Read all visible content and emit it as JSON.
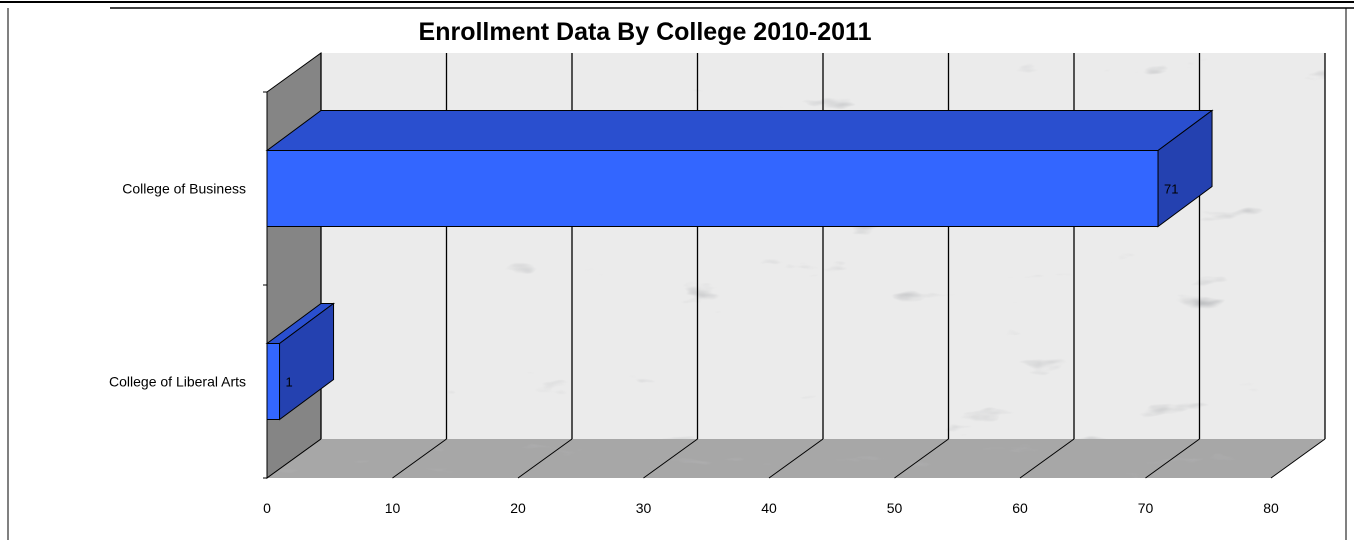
{
  "chart_data": {
    "type": "bar",
    "orientation": "horizontal",
    "title": "Enrollment Data By College 2010-2011",
    "categories": [
      "College of Liberal Arts",
      "College of Business"
    ],
    "values": [
      1,
      71
    ],
    "xlim": [
      0,
      80
    ],
    "x_ticks": [
      "0",
      "10",
      "20",
      "30",
      "40",
      "50",
      "60",
      "70",
      "80"
    ],
    "xlabel": "",
    "ylabel": "",
    "grid": true,
    "legend": "none",
    "bar_color": "#3366ff",
    "bar_top_color": "#2a4fcf",
    "bar_side_color": "#2441b0",
    "wall_texture": "marble"
  }
}
